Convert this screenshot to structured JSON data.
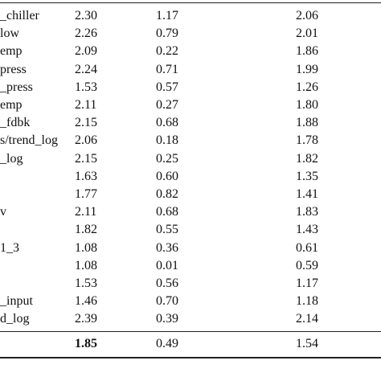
{
  "table": {
    "rows": [
      [
        "_chiller",
        "2.30",
        "1.17",
        "2.06"
      ],
      [
        "low",
        "2.26",
        "0.79",
        "2.01"
      ],
      [
        "emp",
        "2.09",
        "0.22",
        "1.86"
      ],
      [
        "press",
        "2.24",
        "0.71",
        "1.99"
      ],
      [
        "_press",
        "1.53",
        "0.57",
        "1.26"
      ],
      [
        "emp",
        "2.11",
        "0.27",
        "1.80"
      ],
      [
        "_fdbk",
        "2.15",
        "0.68",
        "1.88"
      ],
      [
        "s/trend_log",
        "2.06",
        "0.18",
        "1.78"
      ],
      [
        "_log",
        "2.15",
        "0.25",
        "1.82"
      ],
      [
        null,
        "1.63",
        "0.60",
        "1.35"
      ],
      [
        null,
        "1.77",
        "0.82",
        "1.41"
      ],
      [
        "v",
        "2.11",
        "0.68",
        "1.83"
      ],
      [
        null,
        "1.82",
        "0.55",
        "1.43"
      ],
      [
        "1_3",
        "1.08",
        "0.36",
        "0.61"
      ],
      [
        null,
        "1.08",
        "0.01",
        "0.59"
      ],
      [
        null,
        "1.53",
        "0.56",
        "1.17"
      ],
      [
        "_input",
        "1.46",
        "0.70",
        "1.18"
      ],
      [
        "d_log",
        "2.39",
        "0.39",
        "2.14"
      ]
    ],
    "total": [
      null,
      "1.85",
      "0.49",
      "1.54"
    ]
  }
}
